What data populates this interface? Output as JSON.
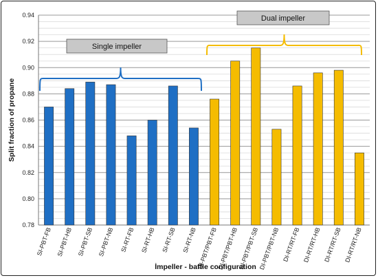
{
  "chart_data": {
    "type": "bar",
    "title": "",
    "xlabel": "İmpeller - baffle configuration",
    "ylabel": "Split fraction of propane",
    "ylim": [
      0.78,
      0.94
    ],
    "ytick_step": 0.02,
    "minor_step": 0.005,
    "categories": [
      "SI-PBT-FB",
      "SI-PBT-HB",
      "SI-PBT-SB",
      "SI-PBT-NB",
      "SI-RT-FB",
      "SI-RT-HB",
      "SI-RT-SB",
      "SI-RT-NB",
      "DI-PBT/PBT-FB",
      "DI-PBT/PBT-HB",
      "DI-PBT/PBT-SB",
      "DI-PBT/PBT-NB",
      "DI-RT/RT-FB",
      "DI-RT/RT-HB",
      "DI-RT/RT-SB",
      "DI-RT/RT-NB"
    ],
    "values": [
      0.87,
      0.884,
      0.889,
      0.887,
      0.848,
      0.86,
      0.886,
      0.854,
      0.876,
      0.905,
      0.915,
      0.853,
      0.886,
      0.896,
      0.898,
      0.835
    ],
    "groups": [
      {
        "label": "Single impeller",
        "start": 0,
        "end": 7,
        "color": "#1f6fc4"
      },
      {
        "label": "Dual impeller",
        "start": 8,
        "end": 15,
        "color": "#f5bc00"
      }
    ],
    "grid": true,
    "legend": "none"
  }
}
